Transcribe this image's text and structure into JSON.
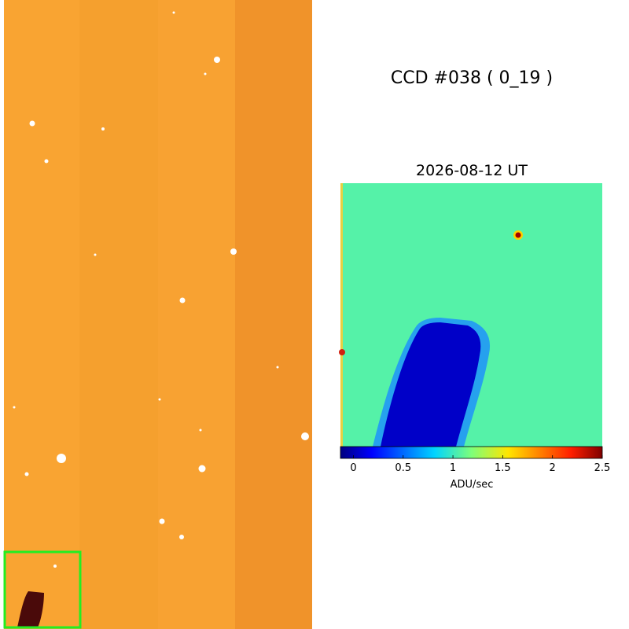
{
  "title": "CCD #038 ( 0_19 )",
  "date": "2026-08-12 UT",
  "colorbar": {
    "label": "ADU/sec",
    "lim": [
      -0.13,
      2.5
    ],
    "ticks": [
      0,
      0.5,
      1,
      1.5,
      2,
      2.5
    ]
  }
}
